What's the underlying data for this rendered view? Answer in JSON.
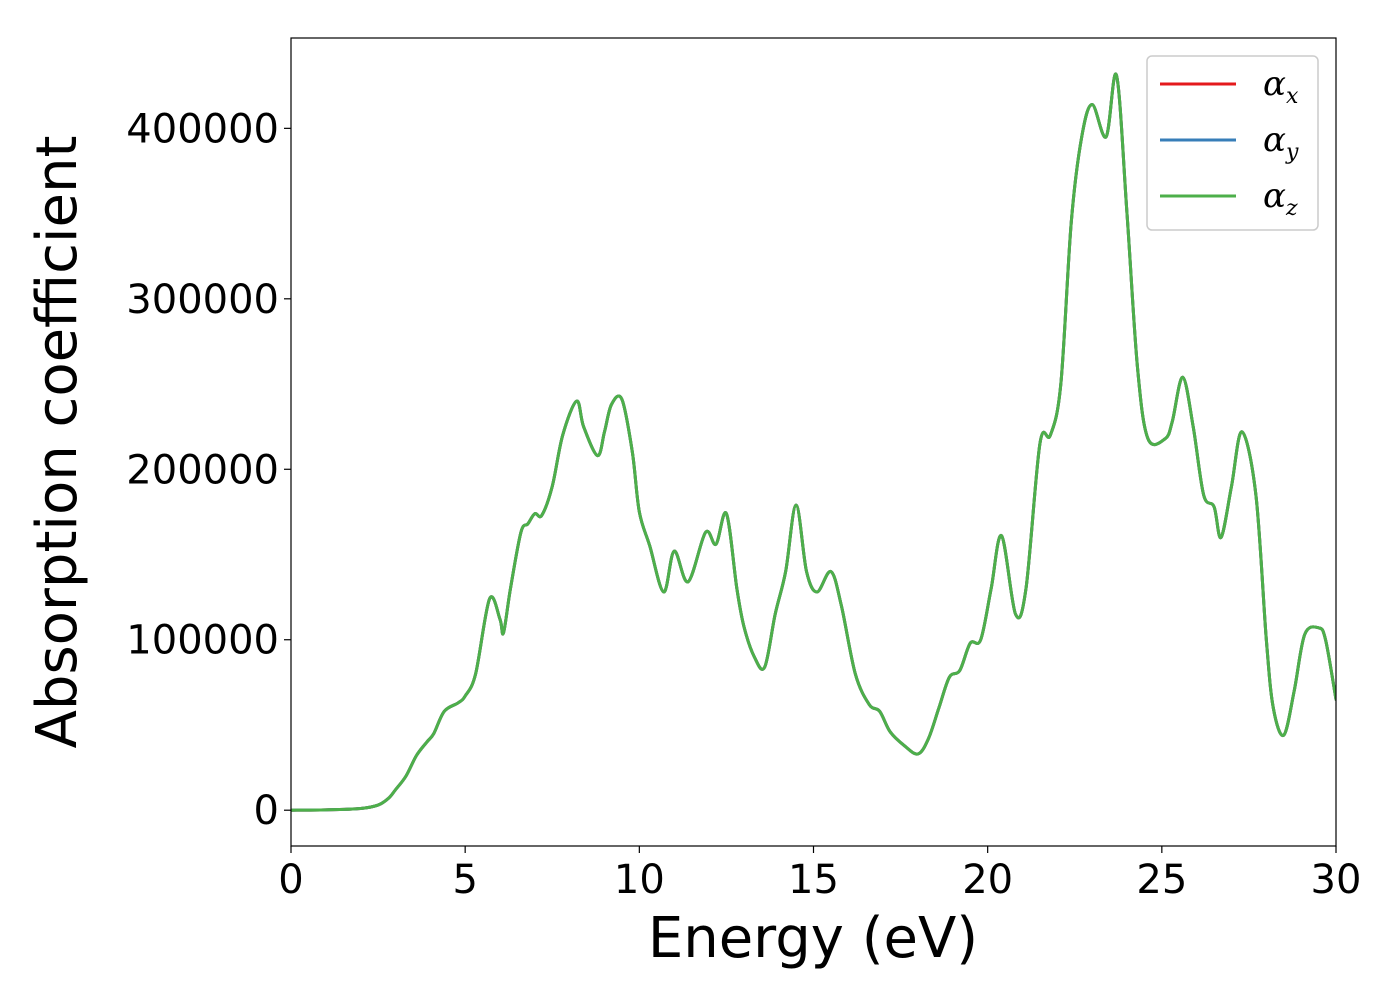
{
  "chart_data": {
    "type": "line",
    "xlabel": "Energy (eV)",
    "ylabel": "Absorption coefficient",
    "xlim": [
      0,
      30
    ],
    "ylim": [
      -21000,
      453000
    ],
    "xticks": [
      0,
      5,
      10,
      15,
      20,
      25,
      30
    ],
    "yticks": [
      0,
      100000,
      200000,
      300000,
      400000
    ],
    "grid": false,
    "legend_position": "top-right",
    "x": [
      0,
      1,
      2,
      2.5,
      2.8,
      3.0,
      3.3,
      3.6,
      3.9,
      4.1,
      4.4,
      4.8,
      5.0,
      5.3,
      5.7,
      6.0,
      6.1,
      6.3,
      6.6,
      6.8,
      7.0,
      7.2,
      7.5,
      7.8,
      8.2,
      8.4,
      8.8,
      9.0,
      9.2,
      9.5,
      9.8,
      10.0,
      10.3,
      10.7,
      11.0,
      11.4,
      11.9,
      12.2,
      12.5,
      12.8,
      13.0,
      13.3,
      13.6,
      13.9,
      14.2,
      14.5,
      14.8,
      15.1,
      15.5,
      15.8,
      16.2,
      16.6,
      16.9,
      17.2,
      17.6,
      18.0,
      18.3,
      18.6,
      18.9,
      19.2,
      19.5,
      19.8,
      20.1,
      20.4,
      20.8,
      21.1,
      21.5,
      21.8,
      22.1,
      22.4,
      22.7,
      23.0,
      23.4,
      23.7,
      24.0,
      24.3,
      24.6,
      25.1,
      25.3,
      25.6,
      25.9,
      26.2,
      26.5,
      26.7,
      27.0,
      27.3,
      27.7,
      28.0,
      28.2,
      28.5,
      28.8,
      29.1,
      29.5,
      29.7,
      30.0
    ],
    "series": [
      {
        "name": "α_x",
        "color": "#e41a1c",
        "values": [
          0,
          200,
          1000,
          3000,
          7000,
          12000,
          20000,
          32000,
          40000,
          45000,
          58000,
          63000,
          67000,
          80000,
          124000,
          112000,
          104000,
          130000,
          163000,
          168000,
          174000,
          173000,
          190000,
          220000,
          240000,
          225000,
          208000,
          222000,
          238000,
          241000,
          210000,
          175000,
          155000,
          128000,
          152000,
          134000,
          163000,
          156000,
          174000,
          130000,
          108000,
          90000,
          84000,
          115000,
          140000,
          179000,
          140000,
          128000,
          140000,
          120000,
          80000,
          62000,
          58000,
          46000,
          38000,
          33000,
          42000,
          60000,
          78000,
          82000,
          98000,
          100000,
          130000,
          161000,
          115000,
          130000,
          215000,
          220000,
          250000,
          345000,
          395000,
          414000,
          395000,
          431000,
          350000,
          260000,
          218000,
          218000,
          228000,
          254000,
          225000,
          185000,
          178000,
          160000,
          190000,
          222000,
          185000,
          100000,
          60000,
          44000,
          70000,
          103000,
          107000,
          100000,
          65000
        ]
      },
      {
        "name": "α_y",
        "color": "#377eb8",
        "values": [
          0,
          200,
          1000,
          3000,
          7000,
          12000,
          20000,
          32000,
          40000,
          45000,
          58000,
          63000,
          67000,
          80000,
          124000,
          112000,
          104000,
          130000,
          163000,
          168000,
          174000,
          173000,
          190000,
          220000,
          240000,
          225000,
          208000,
          222000,
          238000,
          241000,
          210000,
          175000,
          155000,
          128000,
          152000,
          134000,
          163000,
          156000,
          174000,
          130000,
          108000,
          90000,
          84000,
          115000,
          140000,
          179000,
          140000,
          128000,
          140000,
          120000,
          80000,
          62000,
          58000,
          46000,
          38000,
          33000,
          42000,
          60000,
          78000,
          82000,
          98000,
          100000,
          130000,
          161000,
          115000,
          130000,
          215000,
          220000,
          250000,
          345000,
          395000,
          414000,
          395000,
          431000,
          350000,
          260000,
          218000,
          218000,
          228000,
          254000,
          225000,
          185000,
          178000,
          160000,
          190000,
          222000,
          185000,
          100000,
          60000,
          44000,
          70000,
          103000,
          107000,
          100000,
          65000
        ]
      },
      {
        "name": "α_z",
        "color": "#4daf4a",
        "values": [
          0,
          200,
          1000,
          3000,
          7000,
          12000,
          20000,
          32000,
          40000,
          45000,
          58000,
          63000,
          67000,
          80000,
          124000,
          112000,
          104000,
          130000,
          163000,
          168000,
          174000,
          173000,
          190000,
          220000,
          240000,
          225000,
          208000,
          222000,
          238000,
          241000,
          210000,
          175000,
          155000,
          128000,
          152000,
          134000,
          163000,
          156000,
          174000,
          130000,
          108000,
          90000,
          84000,
          115000,
          140000,
          179000,
          140000,
          128000,
          140000,
          120000,
          80000,
          62000,
          58000,
          46000,
          38000,
          33000,
          42000,
          60000,
          78000,
          82000,
          98000,
          100000,
          130000,
          161000,
          115000,
          130000,
          215000,
          220000,
          250000,
          345000,
          395000,
          414000,
          395000,
          431000,
          350000,
          260000,
          218000,
          218000,
          228000,
          254000,
          225000,
          185000,
          178000,
          160000,
          190000,
          222000,
          185000,
          100000,
          60000,
          44000,
          70000,
          103000,
          107000,
          100000,
          65000
        ]
      }
    ]
  }
}
